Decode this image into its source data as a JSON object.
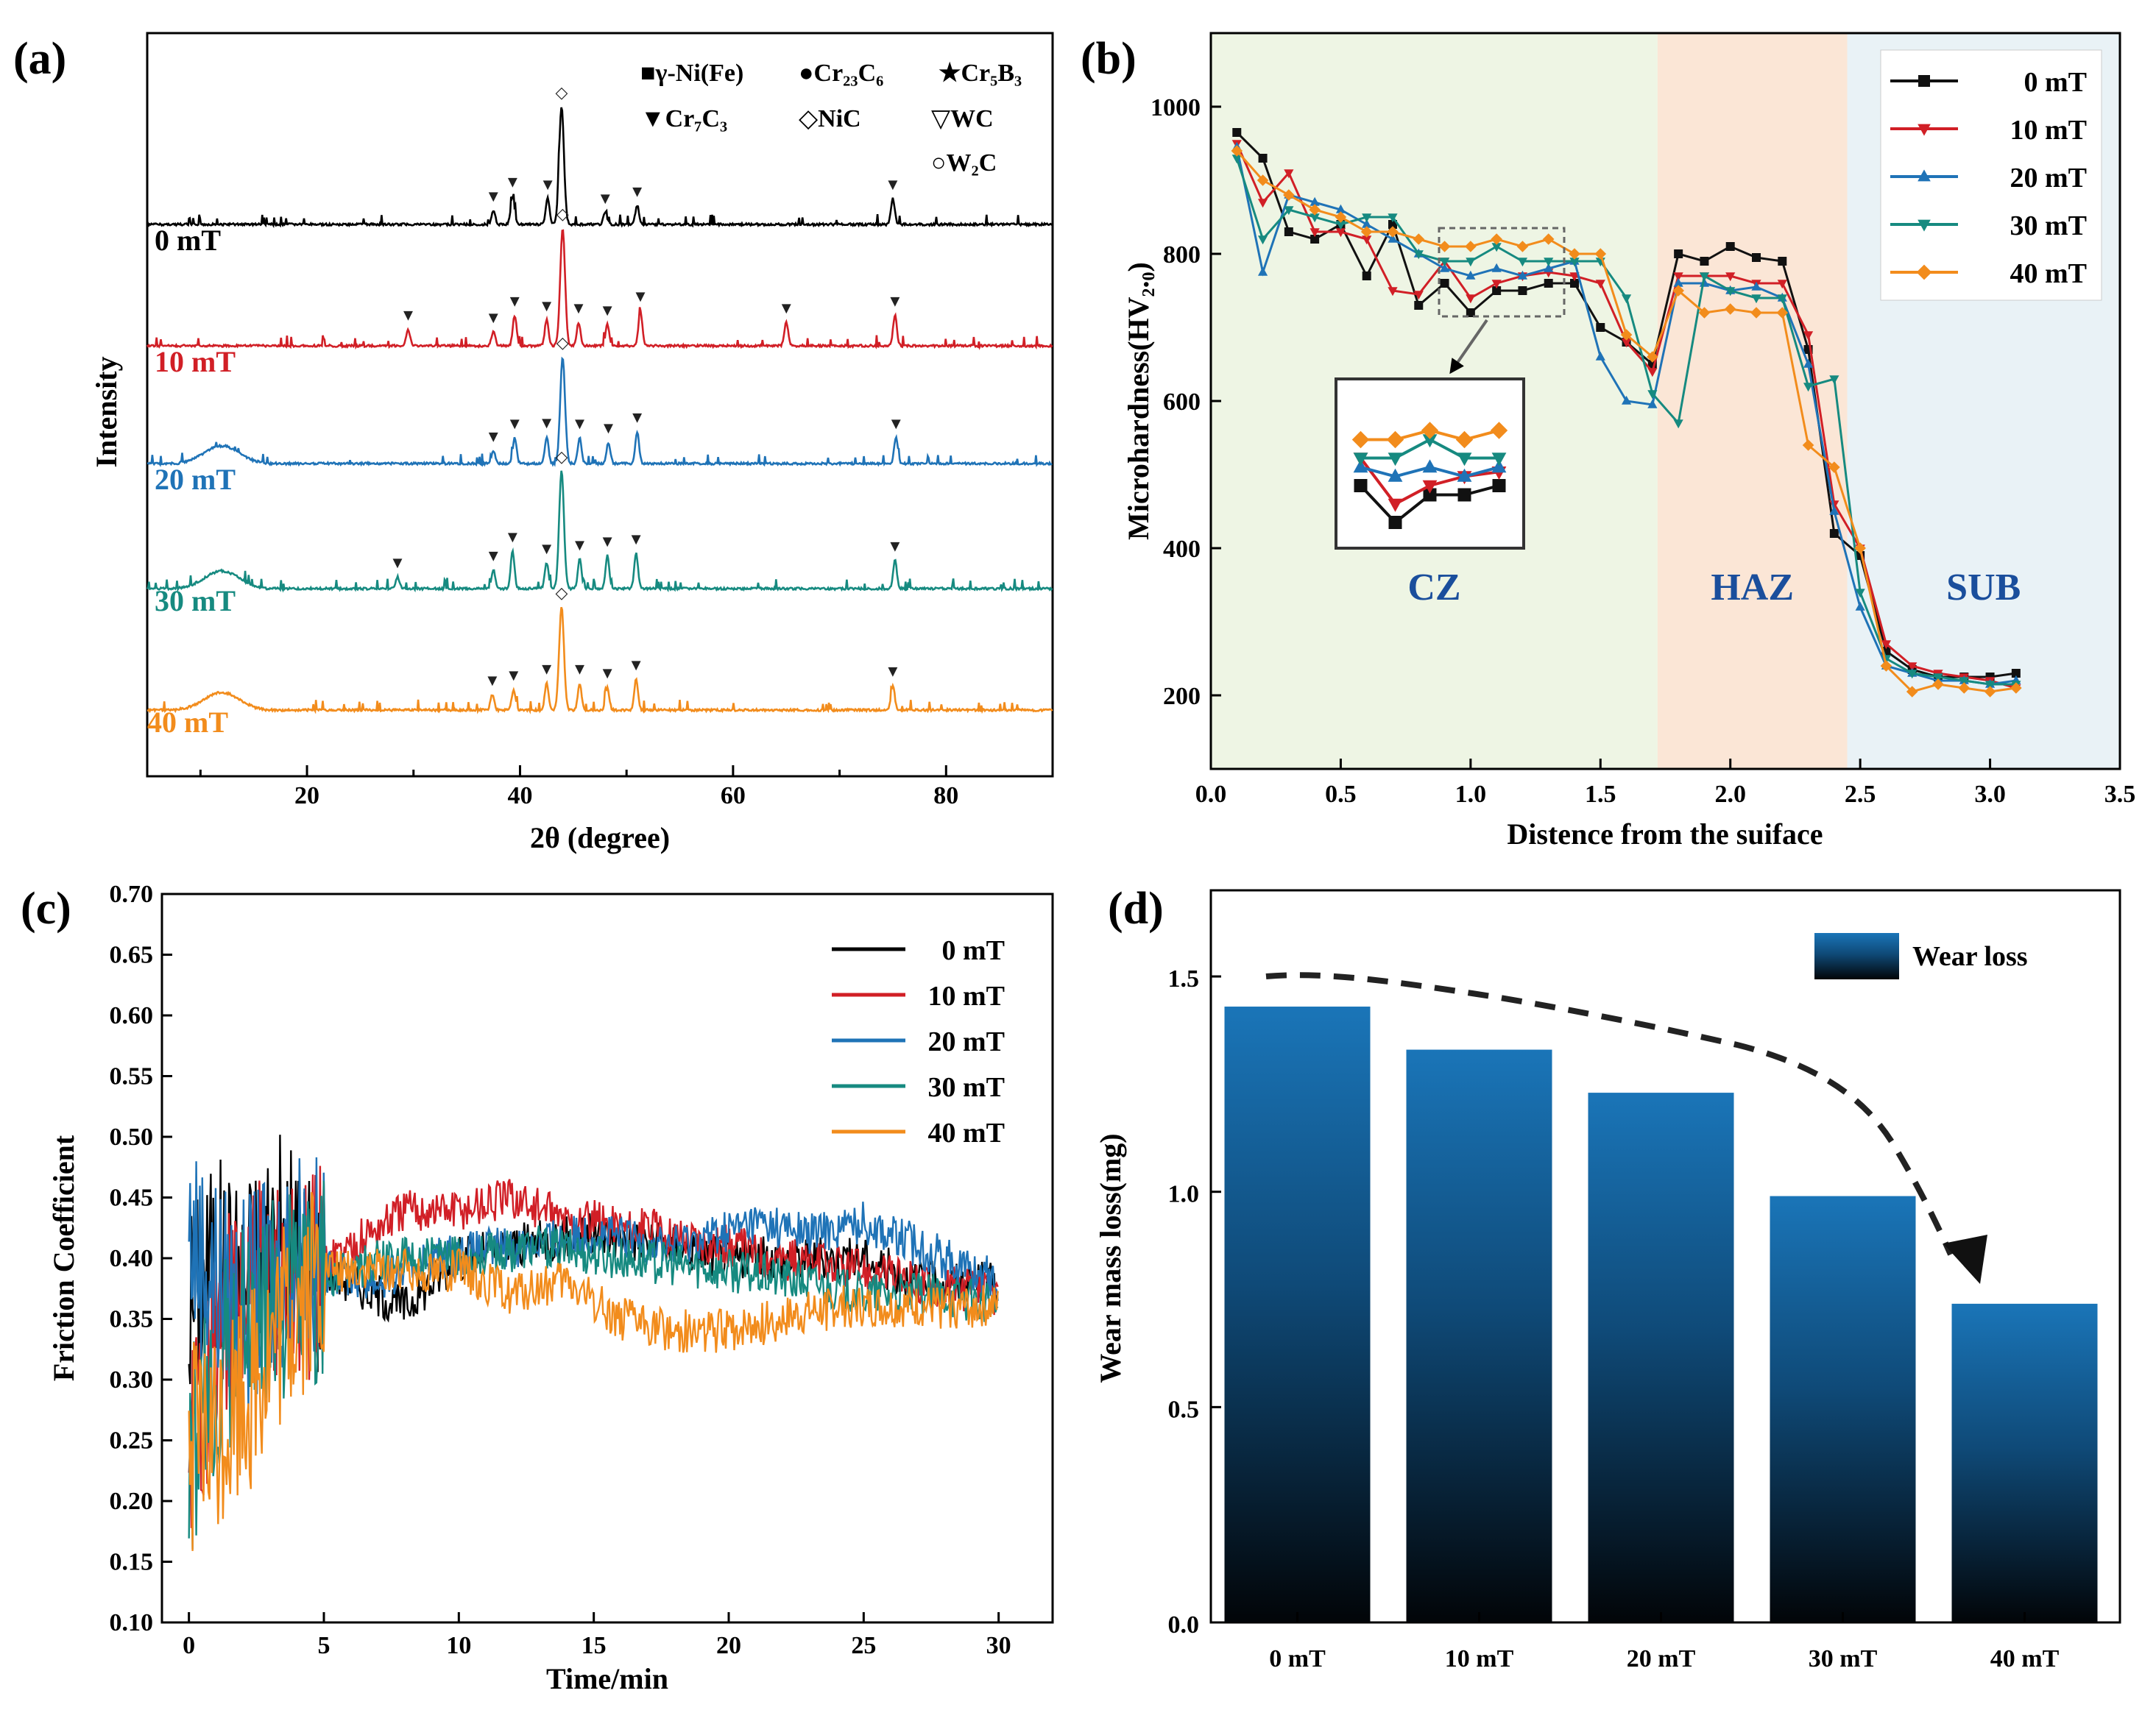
{
  "chart_data": [
    {
      "panel": "(a)",
      "type": "line",
      "xlabel": "2θ (degree)",
      "ylabel": "Intensity",
      "xlim": [
        5,
        90
      ],
      "xticks": [
        20,
        40,
        60,
        80
      ],
      "phase_legend": [
        "■γ-Ni(Fe)",
        "●Cr₂₃C₆",
        "★Cr₅B₃",
        "▼Cr₇C₃",
        "◇NiC",
        "▽WC",
        "○W₂C"
      ],
      "series": [
        {
          "name": "0 mT",
          "color": "#000000",
          "peaks": [
            [
              37.5,
              0.12
            ],
            [
              39.3,
              0.24
            ],
            [
              42.6,
              0.22
            ],
            [
              43.9,
              1.0
            ],
            [
              48.0,
              0.1
            ],
            [
              51.0,
              0.16
            ],
            [
              75.0,
              0.22
            ]
          ]
        },
        {
          "name": "10 mT",
          "color": "#d11f26",
          "peaks": [
            [
              29.5,
              0.14
            ],
            [
              37.5,
              0.12
            ],
            [
              39.5,
              0.26
            ],
            [
              42.5,
              0.22
            ],
            [
              44.0,
              1.0
            ],
            [
              45.5,
              0.2
            ],
            [
              48.2,
              0.18
            ],
            [
              51.3,
              0.3
            ],
            [
              65.0,
              0.2
            ],
            [
              75.2,
              0.26
            ]
          ]
        },
        {
          "name": "20 mT",
          "color": "#1f73b7",
          "peaks": [
            [
              37.5,
              0.12
            ],
            [
              39.5,
              0.24
            ],
            [
              42.5,
              0.25
            ],
            [
              44.0,
              1.0
            ],
            [
              45.6,
              0.24
            ],
            [
              48.3,
              0.2
            ],
            [
              51.0,
              0.3
            ],
            [
              75.3,
              0.24
            ]
          ]
        },
        {
          "name": "30 mT",
          "color": "#168a80",
          "peaks": [
            [
              28.5,
              0.1
            ],
            [
              37.5,
              0.16
            ],
            [
              39.3,
              0.32
            ],
            [
              42.5,
              0.22
            ],
            [
              43.9,
              1.0
            ],
            [
              45.6,
              0.25
            ],
            [
              48.2,
              0.28
            ],
            [
              50.9,
              0.3
            ],
            [
              75.2,
              0.24
            ]
          ]
        },
        {
          "name": "40 mT",
          "color": "#f28c1c",
          "peaks": [
            [
              37.4,
              0.15
            ],
            [
              39.4,
              0.2
            ],
            [
              42.5,
              0.26
            ],
            [
              43.9,
              1.0
            ],
            [
              45.6,
              0.26
            ],
            [
              48.2,
              0.22
            ],
            [
              50.9,
              0.3
            ],
            [
              75.0,
              0.24
            ]
          ]
        }
      ]
    },
    {
      "panel": "(b)",
      "type": "line",
      "xlabel": "Distence from the suiface",
      "ylabel": "Microhardness(HV₂.₀)",
      "xlim": [
        0,
        3.5
      ],
      "ylim": [
        100,
        1100
      ],
      "xticks": [
        0.0,
        0.5,
        1.0,
        1.5,
        2.0,
        2.5,
        3.0,
        3.5
      ],
      "yticks": [
        200,
        400,
        600,
        800,
        1000
      ],
      "regions": [
        {
          "label": "CZ",
          "from": 0,
          "to": 1.72,
          "color": "#eef5e4"
        },
        {
          "label": "HAZ",
          "from": 1.72,
          "to": 2.45,
          "color": "#fbe6d6"
        },
        {
          "label": "SUB",
          "from": 2.45,
          "to": 3.5,
          "color": "#e9f2f6"
        }
      ],
      "x": [
        0.1,
        0.2,
        0.3,
        0.4,
        0.5,
        0.6,
        0.7,
        0.8,
        0.9,
        1.0,
        1.1,
        1.2,
        1.3,
        1.4,
        1.5,
        1.6,
        1.7,
        1.8,
        1.9,
        2.0,
        2.1,
        2.2,
        2.3,
        2.4,
        2.5,
        2.6,
        2.7,
        2.8,
        2.9,
        3.0,
        3.1
      ],
      "series": [
        {
          "name": "0 mT",
          "color": "#111111",
          "marker": "square",
          "values": [
            965,
            930,
            830,
            820,
            840,
            770,
            840,
            730,
            760,
            720,
            750,
            750,
            760,
            760,
            700,
            680,
            650,
            800,
            790,
            810,
            795,
            790,
            670,
            420,
            390,
            260,
            235,
            225,
            225,
            225,
            230
          ]
        },
        {
          "name": "10 mT",
          "color": "#d11f26",
          "marker": "tri-down",
          "values": [
            950,
            870,
            910,
            830,
            830,
            820,
            750,
            745,
            790,
            740,
            760,
            770,
            775,
            770,
            760,
            680,
            640,
            770,
            770,
            770,
            760,
            760,
            690,
            460,
            400,
            270,
            240,
            230,
            225,
            220,
            210
          ]
        },
        {
          "name": "20 mT",
          "color": "#1f73b7",
          "marker": "triangle",
          "values": [
            945,
            775,
            880,
            870,
            860,
            840,
            820,
            800,
            780,
            770,
            780,
            770,
            780,
            790,
            660,
            600,
            595,
            760,
            760,
            750,
            755,
            740,
            650,
            450,
            320,
            240,
            230,
            220,
            220,
            215,
            220
          ]
        },
        {
          "name": "30 mT",
          "color": "#168a80",
          "marker": "tri-down",
          "values": [
            930,
            820,
            860,
            850,
            840,
            850,
            850,
            800,
            790,
            790,
            810,
            790,
            790,
            790,
            790,
            740,
            610,
            570,
            770,
            750,
            740,
            740,
            620,
            630,
            340,
            250,
            230,
            225,
            220,
            215,
            215
          ]
        },
        {
          "name": "40 mT",
          "color": "#f28c1c",
          "marker": "diamond",
          "values": [
            940,
            900,
            880,
            860,
            850,
            830,
            830,
            820,
            810,
            810,
            820,
            810,
            820,
            800,
            800,
            690,
            660,
            750,
            720,
            725,
            720,
            720,
            540,
            510,
            400,
            240,
            205,
            215,
            210,
            205,
            210
          ]
        }
      ]
    },
    {
      "panel": "(c)",
      "type": "line",
      "xlabel": "Time/min",
      "ylabel": "Friction Coefficient",
      "xlim": [
        -1,
        32
      ],
      "ylim": [
        0.1,
        0.7
      ],
      "xticks": [
        0,
        5,
        10,
        15,
        20,
        25,
        30
      ],
      "yticks": [
        0.1,
        0.15,
        0.2,
        0.25,
        0.3,
        0.35,
        0.4,
        0.45,
        0.5,
        0.55,
        0.6,
        0.65,
        0.7
      ],
      "series": [
        {
          "name": "0 mT",
          "color": "#000000",
          "x": [
            0,
            1,
            2,
            3,
            4,
            5,
            6,
            7,
            8,
            10,
            12,
            15,
            18,
            20,
            22,
            25,
            27,
            30
          ],
          "values": [
            0.36,
            0.4,
            0.38,
            0.42,
            0.4,
            0.39,
            0.38,
            0.37,
            0.36,
            0.4,
            0.41,
            0.42,
            0.41,
            0.4,
            0.4,
            0.4,
            0.38,
            0.38
          ]
        },
        {
          "name": "10 mT",
          "color": "#d11f26",
          "x": [
            0,
            1,
            2,
            3,
            4,
            5,
            6,
            8,
            10,
            12,
            14,
            15,
            18,
            20,
            22,
            25,
            27,
            30
          ],
          "values": [
            0.25,
            0.33,
            0.37,
            0.38,
            0.38,
            0.4,
            0.41,
            0.44,
            0.44,
            0.45,
            0.43,
            0.43,
            0.42,
            0.41,
            0.4,
            0.39,
            0.38,
            0.37
          ]
        },
        {
          "name": "20 mT",
          "color": "#1f73b7",
          "x": [
            0,
            1,
            2,
            3,
            4,
            5,
            7,
            9,
            12,
            15,
            18,
            21,
            23,
            25,
            27,
            30
          ],
          "values": [
            0.42,
            0.38,
            0.36,
            0.38,
            0.41,
            0.39,
            0.38,
            0.4,
            0.41,
            0.42,
            0.41,
            0.43,
            0.42,
            0.43,
            0.41,
            0.38
          ]
        },
        {
          "name": "30 mT",
          "color": "#168a80",
          "x": [
            0,
            1,
            2,
            3,
            4,
            5,
            7,
            10,
            13,
            16,
            20,
            23,
            25,
            28,
            30
          ],
          "values": [
            0.22,
            0.3,
            0.34,
            0.36,
            0.38,
            0.38,
            0.4,
            0.4,
            0.41,
            0.4,
            0.39,
            0.38,
            0.37,
            0.37,
            0.36
          ]
        },
        {
          "name": "40 mT",
          "color": "#f28c1c",
          "x": [
            0,
            1,
            2,
            3,
            4,
            5,
            8,
            10,
            12,
            14,
            16,
            18,
            20,
            22,
            24,
            27,
            30
          ],
          "values": [
            0.24,
            0.25,
            0.29,
            0.32,
            0.36,
            0.39,
            0.39,
            0.39,
            0.37,
            0.38,
            0.35,
            0.34,
            0.34,
            0.35,
            0.36,
            0.36,
            0.36
          ]
        }
      ]
    },
    {
      "panel": "(d)",
      "type": "bar",
      "categories": [
        "0 mT",
        "10 mT",
        "20 mT",
        "30 mT",
        "40 mT"
      ],
      "values": [
        1.43,
        1.33,
        1.23,
        0.99,
        0.74
      ],
      "ylabel": "Wear mass loss(mg)",
      "ylim": [
        0,
        1.7
      ],
      "yticks": [
        0.0,
        0.5,
        1.0,
        1.5
      ],
      "legend": "Wear loss"
    }
  ]
}
